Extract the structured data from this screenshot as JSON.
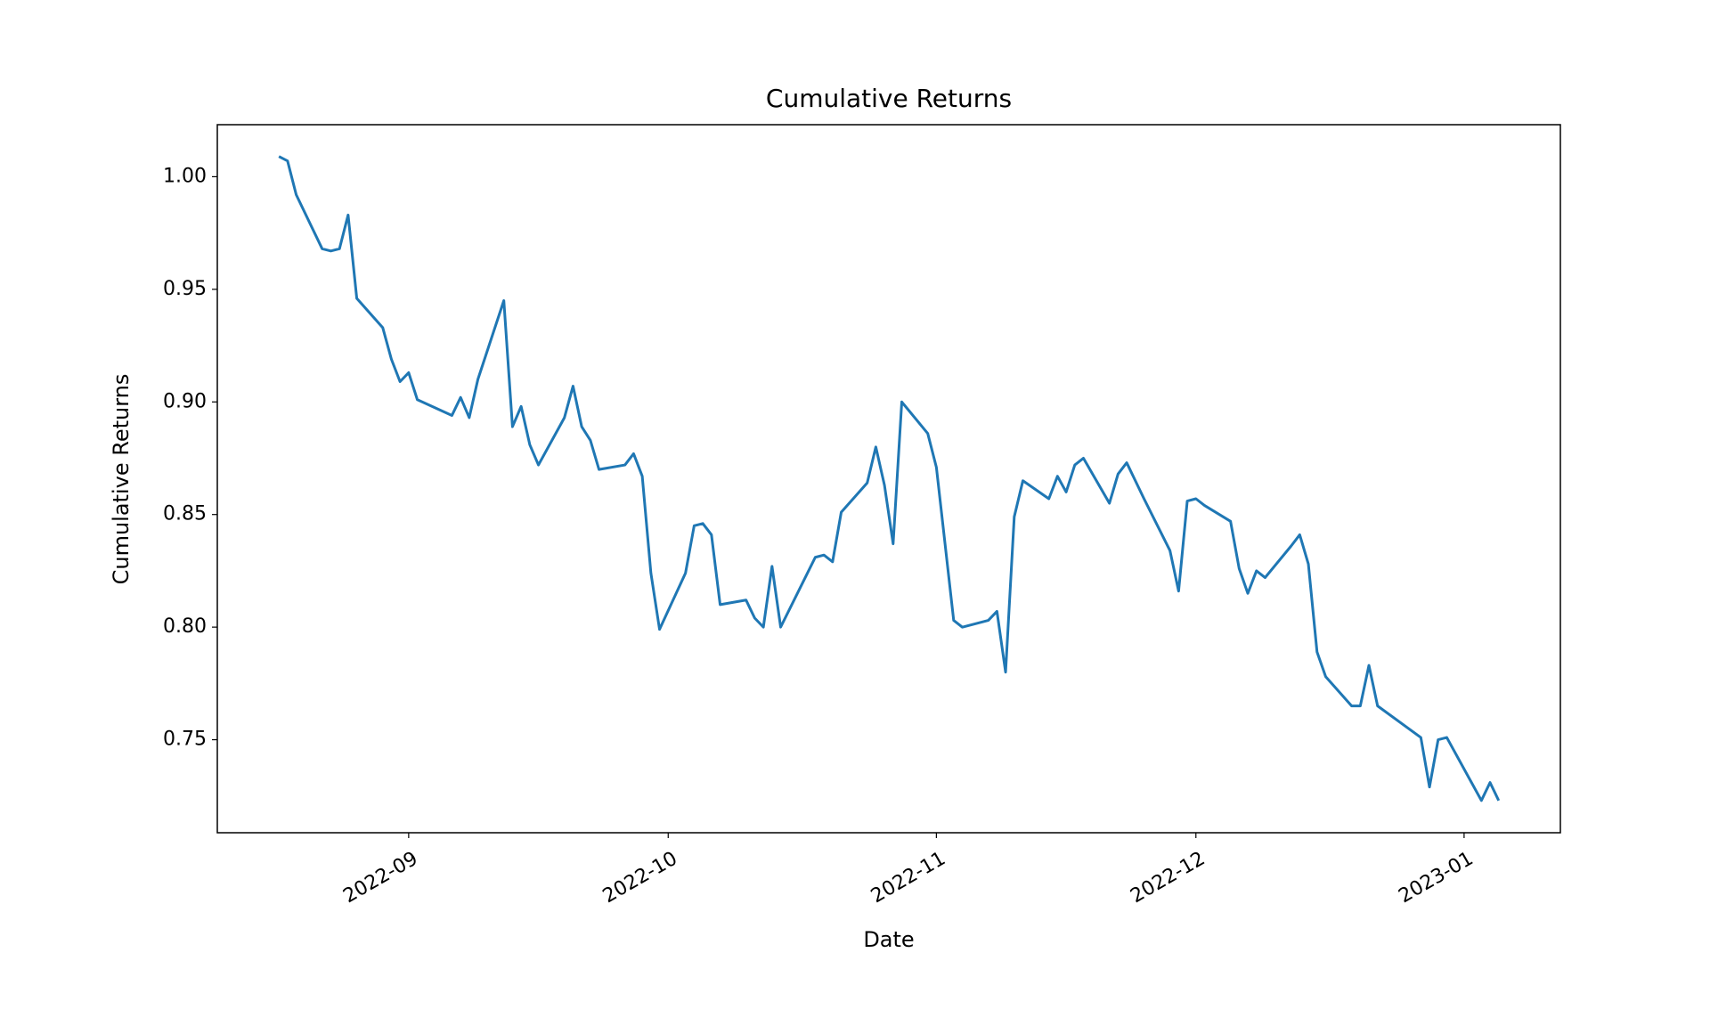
{
  "chart_data": {
    "type": "line",
    "title": "Cumulative Returns",
    "xlabel": "Date",
    "ylabel": "Cumulative Returns",
    "color": "#1f77b4",
    "x": [
      19221,
      19222,
      19223,
      19226,
      19227,
      19228,
      19229,
      19230,
      19233,
      19234,
      19235,
      19236,
      19237,
      19241,
      19242,
      19243,
      19244,
      19247,
      19248,
      19249,
      19250,
      19251,
      19254,
      19255,
      19256,
      19257,
      19258,
      19261,
      19262,
      19263,
      19264,
      19265,
      19268,
      19269,
      19270,
      19271,
      19272,
      19275,
      19276,
      19277,
      19278,
      19279,
      19283,
      19284,
      19285,
      19286,
      19289,
      19290,
      19291,
      19292,
      19293,
      19296,
      19297,
      19298,
      19299,
      19300,
      19303,
      19304,
      19305,
      19306,
      19307,
      19310,
      19311,
      19312,
      19313,
      19314,
      19317,
      19318,
      19319,
      19321,
      19324,
      19325,
      19326,
      19327,
      19328,
      19331,
      19332,
      19333,
      19334,
      19335,
      19338,
      19339,
      19340,
      19341,
      19342,
      19345,
      19346,
      19347,
      19348,
      19353,
      19354,
      19355,
      19356,
      19360,
      19361,
      19362
    ],
    "values": [
      1.009,
      1.007,
      0.992,
      0.968,
      0.967,
      0.968,
      0.983,
      0.946,
      0.933,
      0.919,
      0.909,
      0.913,
      0.901,
      0.894,
      0.902,
      0.893,
      0.91,
      0.945,
      0.889,
      0.898,
      0.881,
      0.872,
      0.893,
      0.907,
      0.889,
      0.883,
      0.87,
      0.872,
      0.877,
      0.867,
      0.824,
      0.799,
      0.824,
      0.845,
      0.846,
      0.841,
      0.81,
      0.812,
      0.804,
      0.8,
      0.827,
      0.8,
      0.831,
      0.832,
      0.829,
      0.851,
      0.864,
      0.88,
      0.863,
      0.837,
      0.9,
      0.886,
      0.871,
      0.837,
      0.803,
      0.8,
      0.803,
      0.807,
      0.78,
      0.849,
      0.865,
      0.857,
      0.867,
      0.86,
      0.872,
      0.875,
      0.855,
      0.868,
      0.873,
      0.857,
      0.834,
      0.816,
      0.856,
      0.857,
      0.854,
      0.847,
      0.826,
      0.815,
      0.825,
      0.822,
      0.836,
      0.841,
      0.828,
      0.789,
      0.778,
      0.765,
      0.765,
      0.783,
      0.765,
      0.751,
      0.729,
      0.75,
      0.751,
      0.723,
      0.731,
      0.723
    ],
    "xlim": [
      19213.88,
      19369.13
    ],
    "xticks": [
      {
        "value": 19236,
        "label": "2022-09"
      },
      {
        "value": 19266,
        "label": "2022-10"
      },
      {
        "value": 19297,
        "label": "2022-11"
      },
      {
        "value": 19327,
        "label": "2022-12"
      },
      {
        "value": 19358,
        "label": "2023-01"
      }
    ],
    "ylim": [
      0.7087,
      1.0231
    ],
    "yticks": [
      0.75,
      {
        "value": 0.8,
        "label": "0.80"
      },
      0.85,
      {
        "value": 0.9,
        "label": "0.90"
      },
      0.95,
      {
        "value": 1.0,
        "label": "1.00"
      }
    ]
  }
}
